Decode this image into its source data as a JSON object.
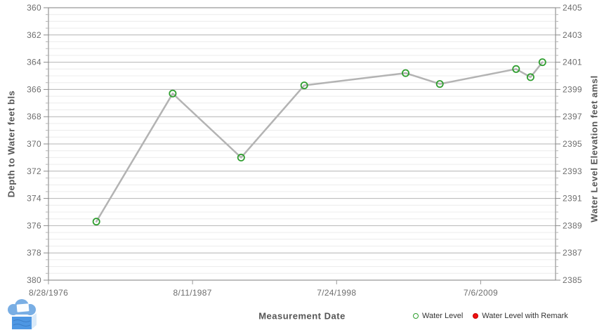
{
  "chart_data": {
    "type": "line",
    "title": "",
    "xlabel": "Measurement Date",
    "ylabel_left": "Depth to Water feet bls",
    "ylabel_right": "Water Level Elevation feet amsl",
    "grid": {
      "major": true,
      "minor": true,
      "vertical_gridlines": false
    },
    "x_axis": {
      "min": 1976.657,
      "max": 2015.2,
      "ticks": [
        {
          "label": "8/28/1976",
          "year": 1976.657
        },
        {
          "label": "8/11/1987",
          "year": 1987.608
        },
        {
          "label": "7/24/1998",
          "year": 1998.559
        },
        {
          "label": "7/6/2009",
          "year": 2009.51
        }
      ]
    },
    "depth_axis": {
      "min": 360,
      "max": 380,
      "major_step": 2,
      "minor_step": 0.5,
      "inverted": true,
      "tick_labels": [
        "360",
        "362",
        "364",
        "366",
        "368",
        "370",
        "372",
        "374",
        "376",
        "378",
        "380"
      ]
    },
    "elevation_axis": {
      "min": 2405,
      "max": 2385,
      "tick_labels": [
        "2405",
        "2403",
        "2401",
        "2399",
        "2397",
        "2395",
        "2393",
        "2391",
        "2389",
        "2387",
        "2385"
      ]
    },
    "series": [
      {
        "name": "Water Level",
        "marker": "open-circle",
        "points": [
          {
            "year": 1980.3,
            "depth": 375.7,
            "elevation": 2389.3
          },
          {
            "year": 1986.1,
            "depth": 366.3,
            "elevation": 2398.7
          },
          {
            "year": 1991.3,
            "depth": 371.0,
            "elevation": 2394.0
          },
          {
            "year": 1996.1,
            "depth": 365.7,
            "elevation": 2399.3
          },
          {
            "year": 2003.8,
            "depth": 364.8,
            "elevation": 2400.2
          },
          {
            "year": 2006.4,
            "depth": 365.6,
            "elevation": 2399.4
          },
          {
            "year": 2012.2,
            "depth": 364.5,
            "elevation": 2400.5
          },
          {
            "year": 2013.3,
            "depth": 365.1,
            "elevation": 2399.9
          },
          {
            "year": 2014.2,
            "depth": 364.0,
            "elevation": 2401.0
          }
        ]
      },
      {
        "name": "Water Level with Remark",
        "marker": "filled-circle",
        "points": []
      }
    ],
    "legend_position": "bottom-right",
    "colors": {
      "line": "#b3b3b3",
      "marker": "#2f9e2f",
      "remark_marker": "#ee1111",
      "grid_major": "#b4b4b4",
      "grid_minor": "#ececec",
      "axis": "#7f7f7f",
      "tick": "#999999",
      "tick_label": "#6e6e6e",
      "axis_title": "#565656"
    }
  },
  "logo": {
    "cloud": "#79aee4",
    "cloud_edge": "#5b94d2",
    "page": "#fbfdff",
    "page_edge": "#d0d8e0",
    "cube_front": "#4e97e3",
    "cube_side": "#d9eafa",
    "cube_side_edge": "#b9d4ea",
    "wave": "#2e6cb5"
  }
}
